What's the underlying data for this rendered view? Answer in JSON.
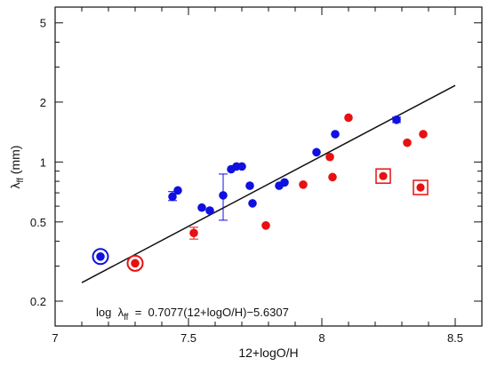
{
  "chart_data": {
    "type": "scatter",
    "xlabel": "12+logO/H",
    "ylabel_main": "λ",
    "ylabel_sub": "ff",
    "ylabel_unit": " (mm)",
    "y_scale": "log",
    "xlim": [
      7.0,
      8.6
    ],
    "ylim": [
      0.15,
      6.0
    ],
    "xticks": [
      7,
      7.5,
      8,
      8.5
    ],
    "xtick_labels": [
      "7",
      "7.5",
      "8",
      "8.5"
    ],
    "yticks": [
      0.2,
      0.5,
      1,
      2,
      5
    ],
    "ytick_labels": [
      "0.2",
      "0.5",
      "1",
      "2",
      "5"
    ],
    "annotation": {
      "prefix": "log  λ",
      "sub": "ff",
      "suffix": "  =  0.7077(12+logO/H)−5.6307"
    },
    "fit_line": {
      "slope": 0.7077,
      "intercept": -5.6307,
      "x_range": [
        7.1,
        8.5
      ]
    },
    "colors": {
      "blue": "#1010e0",
      "red": "#e81010",
      "line": "#111111"
    },
    "series": [
      {
        "color": "blue",
        "points": [
          {
            "x": 7.44,
            "y": 0.67,
            "err": [
              0.64,
              0.71
            ]
          },
          {
            "x": 7.46,
            "y": 0.72
          },
          {
            "x": 7.55,
            "y": 0.59
          },
          {
            "x": 7.58,
            "y": 0.57
          },
          {
            "x": 7.63,
            "y": 0.68,
            "err": [
              0.51,
              0.87
            ]
          },
          {
            "x": 7.66,
            "y": 0.92
          },
          {
            "x": 7.68,
            "y": 0.95
          },
          {
            "x": 7.7,
            "y": 0.95
          },
          {
            "x": 7.73,
            "y": 0.76
          },
          {
            "x": 7.74,
            "y": 0.62
          },
          {
            "x": 7.84,
            "y": 0.76
          },
          {
            "x": 7.86,
            "y": 0.79
          },
          {
            "x": 7.98,
            "y": 1.12
          },
          {
            "x": 8.05,
            "y": 1.38
          },
          {
            "x": 8.28,
            "y": 1.63,
            "err": [
              1.58,
              1.68
            ]
          }
        ]
      },
      {
        "color": "red",
        "points": [
          {
            "x": 7.52,
            "y": 0.44,
            "err": [
              0.41,
              0.47
            ]
          },
          {
            "x": 7.79,
            "y": 0.48
          },
          {
            "x": 7.93,
            "y": 0.77
          },
          {
            "x": 8.03,
            "y": 1.06
          },
          {
            "x": 8.04,
            "y": 0.84
          },
          {
            "x": 8.1,
            "y": 1.67
          },
          {
            "x": 8.32,
            "y": 1.25
          },
          {
            "x": 8.38,
            "y": 1.38
          }
        ]
      }
    ],
    "special_points": [
      {
        "x": 7.17,
        "y": 0.335,
        "color": "blue",
        "marker": "ring"
      },
      {
        "x": 7.3,
        "y": 0.31,
        "color": "red",
        "marker": "ring"
      },
      {
        "x": 8.23,
        "y": 0.85,
        "color": "red",
        "marker": "square"
      },
      {
        "x": 8.37,
        "y": 0.745,
        "color": "red",
        "marker": "square"
      }
    ]
  }
}
